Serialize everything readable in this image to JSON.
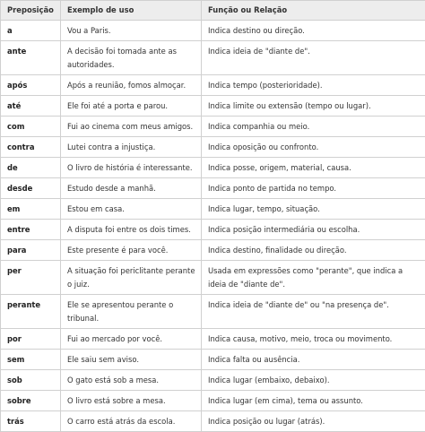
{
  "headers": [
    "Preposição",
    "Exemplo de uso",
    "Função ou Relação"
  ],
  "rows": [
    {
      "prep": "a",
      "example": "Vou a Paris.",
      "function": "Indica destino ou direção."
    },
    {
      "prep": "ante",
      "example": "A decisão foi tomada ante as autoridades.",
      "function": "Indica ideia de \"diante de\"."
    },
    {
      "prep": "após",
      "example": "Após a reunião, fomos almoçar.",
      "function": "Indica tempo (posterioridade)."
    },
    {
      "prep": "até",
      "example": "Ele foi até a porta e parou.",
      "function": "Indica limite ou extensão (tempo ou lugar)."
    },
    {
      "prep": "com",
      "example": "Fui ao cinema com meus amigos.",
      "function": "Indica companhia ou meio."
    },
    {
      "prep": "contra",
      "example": "Lutei contra a injustiça.",
      "function": "Indica oposição ou confronto."
    },
    {
      "prep": "de",
      "example": "O livro de história é interessante.",
      "function": "Indica posse, origem, material, causa."
    },
    {
      "prep": "desde",
      "example": "Estudo desde a manhã.",
      "function": "Indica ponto de partida no tempo."
    },
    {
      "prep": "em",
      "example": "Estou em casa.",
      "function": "Indica lugar, tempo, situação."
    },
    {
      "prep": "entre",
      "example": "A disputa foi entre os dois times.",
      "function": "Indica posição intermediária ou escolha."
    },
    {
      "prep": "para",
      "example": "Este presente é para você.",
      "function": "Indica destino, finalidade ou direção."
    },
    {
      "prep": "per",
      "example": "A situação foi periclitante perante o juiz.",
      "function": "Usada em expressões como \"perante\", que indica a ideia de \"diante de\"."
    },
    {
      "prep": "perante",
      "example": "Ele se apresentou perante o tribunal.",
      "function": "Indica ideia de \"diante de\" ou \"na presença de\"."
    },
    {
      "prep": "por",
      "example": "Fui ao mercado por você.",
      "function": "Indica causa, motivo, meio, troca ou movimento."
    },
    {
      "prep": "sem",
      "example": "Ele saiu sem aviso.",
      "function": "Indica falta ou ausência."
    },
    {
      "prep": "sob",
      "example": "O gato está sob a mesa.",
      "function": "Indica lugar (embaixo, debaixo)."
    },
    {
      "prep": "sobre",
      "example": "O livro está sobre a mesa.",
      "function": "Indica lugar (em cima), tema ou assunto."
    },
    {
      "prep": "trás",
      "example": "O carro está atrás da escola.",
      "function": "Indica posição ou lugar (atrás)."
    }
  ]
}
